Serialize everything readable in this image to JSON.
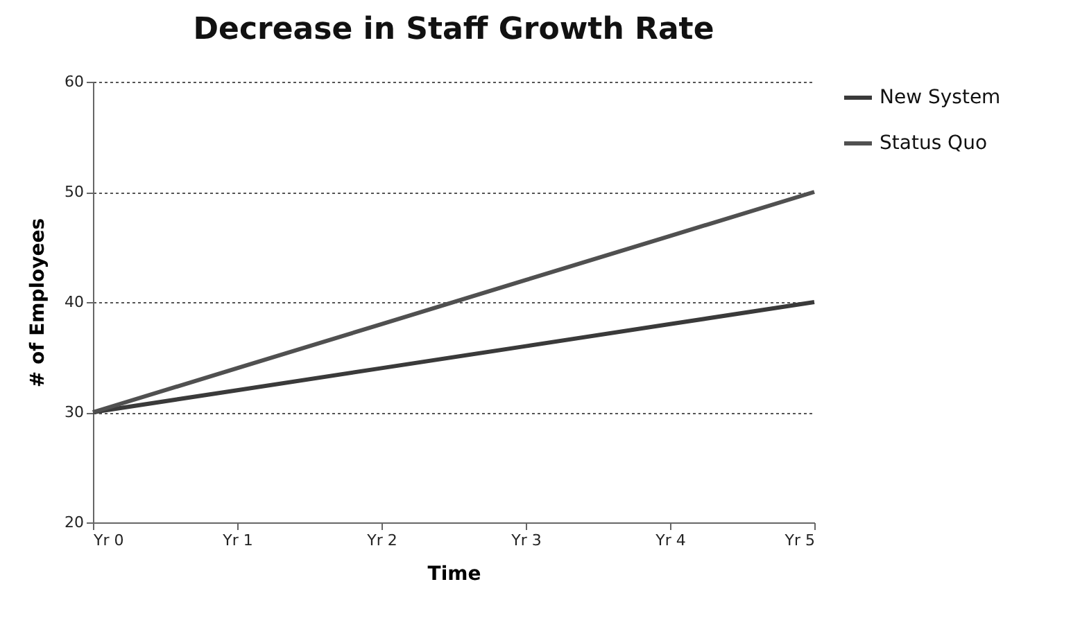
{
  "chart_data": {
    "type": "line",
    "title": "Decrease in Staff Growth Rate",
    "xlabel": "Time",
    "ylabel": "# of Employees",
    "categories": [
      "Yr 0",
      "Yr 1",
      "Yr 2",
      "Yr 3",
      "Yr 4",
      "Yr 5"
    ],
    "series": [
      {
        "name": "New System",
        "color": "#3a3a3a",
        "values": [
          30,
          32,
          34,
          36,
          38,
          40
        ]
      },
      {
        "name": "Status Quo",
        "color": "#505050",
        "values": [
          30,
          34,
          38,
          42,
          46,
          50
        ]
      }
    ],
    "ylim": [
      20,
      60
    ],
    "yticks": [
      20,
      30,
      40,
      50,
      60
    ],
    "grid": "y",
    "legend": "right",
    "marker": "none",
    "line_style": "solid"
  }
}
